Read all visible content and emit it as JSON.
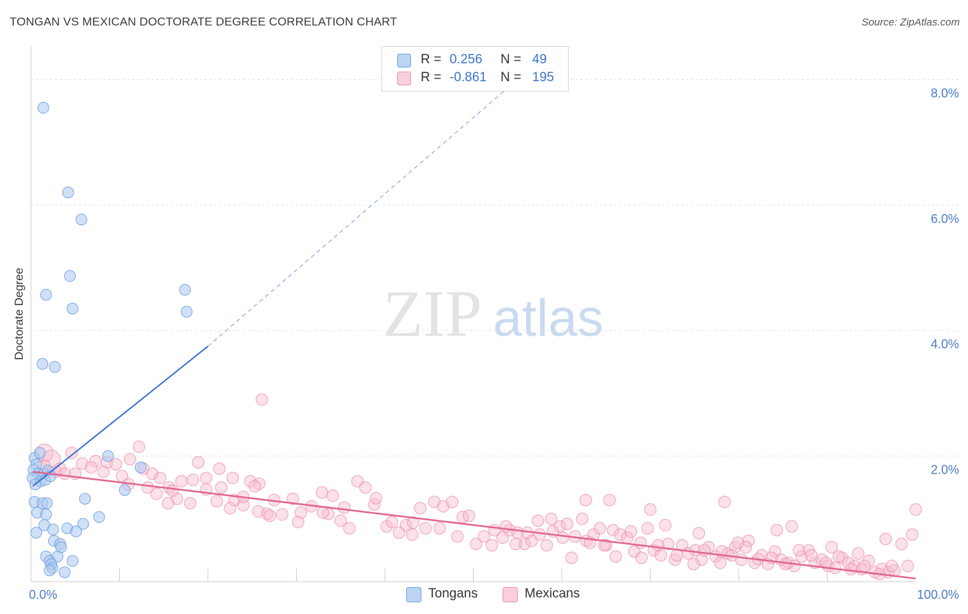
{
  "title": "TONGAN VS MEXICAN DOCTORATE DEGREE CORRELATION CHART",
  "source": "Source: ZipAtlas.com",
  "watermark": {
    "zip": "ZIP",
    "atlas": "atlas"
  },
  "colors": {
    "tongan_fill": "#a9c8f0",
    "tongan_stroke": "#6f9fe0",
    "tongan_line": "#2f6fd0",
    "mexican_fill": "#f6bccd",
    "mexican_stroke": "#ec8fac",
    "mexican_line": "#e0668f",
    "tick_blue": "#4a7cc7",
    "grid": "#dddddd"
  },
  "legend": {
    "tongan": {
      "r_label": "R =",
      "r_value": "0.256",
      "n_label": "N =",
      "n_value": "49"
    },
    "mexican": {
      "r_label": "R =",
      "r_value": "-0.861",
      "n_label": "N =",
      "n_value": "195"
    }
  },
  "bottom_legend": {
    "tongan": "Tongans",
    "mexican": "Mexicans"
  },
  "chart_data": {
    "type": "scatter",
    "title": "TONGAN VS MEXICAN DOCTORATE DEGREE CORRELATION CHART",
    "xlabel": "",
    "ylabel": "Doctorate Degree",
    "xlim": [
      0,
      100
    ],
    "ylim": [
      0,
      8.4
    ],
    "x_ticks": [
      {
        "value": 0,
        "label": "0.0%"
      },
      {
        "value": 100,
        "label": "100.0%"
      }
    ],
    "y_ticks": [
      {
        "value": 2,
        "label": "2.0%"
      },
      {
        "value": 4,
        "label": "4.0%"
      },
      {
        "value": 6,
        "label": "6.0%"
      },
      {
        "value": 8,
        "label": "8.0%"
      }
    ],
    "grid": true,
    "legend_position": "top-center",
    "series": [
      {
        "name": "Tongans",
        "r": 0.256,
        "n": 49,
        "trend": {
          "x0": 0.2,
          "y0": 1.52,
          "x1": 20,
          "y1": 3.75,
          "dash_to_x": 55,
          "dash_to_y": 8.0
        },
        "points": [
          [
            1.4,
            7.55
          ],
          [
            4.2,
            6.2
          ],
          [
            5.7,
            5.77
          ],
          [
            4.4,
            4.87
          ],
          [
            1.7,
            4.57
          ],
          [
            4.7,
            4.35
          ],
          [
            17.4,
            4.65
          ],
          [
            17.6,
            4.3
          ],
          [
            1.3,
            3.47
          ],
          [
            2.7,
            3.42
          ],
          [
            8.7,
            2.0
          ],
          [
            12.4,
            1.82
          ],
          [
            0.4,
            1.97
          ],
          [
            0.6,
            1.87
          ],
          [
            1.0,
            2.05
          ],
          [
            0.3,
            1.78
          ],
          [
            0.8,
            1.72
          ],
          [
            1.5,
            1.72
          ],
          [
            1.9,
            1.77
          ],
          [
            0.2,
            1.65
          ],
          [
            1.1,
            1.6
          ],
          [
            1.6,
            1.62
          ],
          [
            2.2,
            1.68
          ],
          [
            0.5,
            1.55
          ],
          [
            10.6,
            1.46
          ],
          [
            0.4,
            1.27
          ],
          [
            1.3,
            1.25
          ],
          [
            1.8,
            1.25
          ],
          [
            6.1,
            1.32
          ],
          [
            0.7,
            1.1
          ],
          [
            1.7,
            1.07
          ],
          [
            7.7,
            1.03
          ],
          [
            1.5,
            0.9
          ],
          [
            4.1,
            0.85
          ],
          [
            5.9,
            0.92
          ],
          [
            2.5,
            0.83
          ],
          [
            5.1,
            0.8
          ],
          [
            0.6,
            0.78
          ],
          [
            2.6,
            0.65
          ],
          [
            3.3,
            0.6
          ],
          [
            3.4,
            0.55
          ],
          [
            1.7,
            0.4
          ],
          [
            3.0,
            0.4
          ],
          [
            2.1,
            0.33
          ],
          [
            2.3,
            0.28
          ],
          [
            4.7,
            0.33
          ],
          [
            2.4,
            0.22
          ],
          [
            2.1,
            0.18
          ],
          [
            3.8,
            0.15
          ]
        ]
      },
      {
        "name": "Mexicans",
        "r": -0.861,
        "n": 195,
        "trend": {
          "x0": 0.2,
          "y0": 1.75,
          "x1": 100,
          "y1": 0.05
        },
        "points": [
          [
            1.5,
            2.05
          ],
          [
            2.3,
            1.95
          ],
          [
            3.3,
            1.8
          ],
          [
            4.6,
            2.05
          ],
          [
            5.8,
            1.88
          ],
          [
            7.3,
            1.92
          ],
          [
            8.6,
            1.9
          ],
          [
            9.6,
            1.87
          ],
          [
            11.2,
            1.95
          ],
          [
            12.2,
            2.15
          ],
          [
            1.5,
            1.85
          ],
          [
            2.8,
            1.75
          ],
          [
            3.8,
            1.72
          ],
          [
            5.0,
            1.72
          ],
          [
            6.8,
            1.82
          ],
          [
            8.2,
            1.75
          ],
          [
            10.3,
            1.68
          ],
          [
            12.7,
            1.8
          ],
          [
            13.7,
            1.72
          ],
          [
            14.6,
            1.65
          ],
          [
            18.3,
            1.62
          ],
          [
            19.8,
            1.65
          ],
          [
            21.3,
            1.8
          ],
          [
            22.8,
            1.65
          ],
          [
            24.8,
            1.6
          ],
          [
            25.8,
            1.56
          ],
          [
            18.9,
            1.9
          ],
          [
            17.0,
            1.6
          ],
          [
            11.0,
            1.55
          ],
          [
            13.2,
            1.5
          ],
          [
            14.2,
            1.4
          ],
          [
            15.6,
            1.5
          ],
          [
            16.5,
            1.32
          ],
          [
            15.5,
            1.25
          ],
          [
            19.8,
            1.47
          ],
          [
            21.5,
            1.5
          ],
          [
            23.0,
            1.3
          ],
          [
            25.3,
            1.52
          ],
          [
            22.5,
            1.17
          ],
          [
            24.0,
            1.22
          ],
          [
            25.7,
            1.12
          ],
          [
            26.7,
            1.08
          ],
          [
            27.5,
            1.3
          ],
          [
            28.4,
            1.07
          ],
          [
            29.6,
            1.32
          ],
          [
            30.5,
            1.1
          ],
          [
            31.7,
            1.2
          ],
          [
            32.9,
            1.42
          ],
          [
            34.1,
            1.37
          ],
          [
            35.4,
            1.18
          ],
          [
            36.9,
            1.6
          ],
          [
            33.6,
            1.08
          ],
          [
            35.0,
            0.97
          ],
          [
            37.8,
            1.5
          ],
          [
            38.8,
            1.23
          ],
          [
            26.1,
            2.9
          ],
          [
            40.2,
            0.88
          ],
          [
            40.8,
            0.95
          ],
          [
            41.6,
            0.78
          ],
          [
            42.4,
            0.9
          ],
          [
            43.1,
            0.75
          ],
          [
            44.6,
            0.85
          ],
          [
            45.6,
            1.27
          ],
          [
            46.6,
            1.2
          ],
          [
            47.6,
            1.27
          ],
          [
            48.8,
            1.03
          ],
          [
            49.5,
            1.05
          ],
          [
            50.3,
            0.6
          ],
          [
            51.2,
            0.72
          ],
          [
            52.1,
            0.58
          ],
          [
            53.3,
            0.7
          ],
          [
            54.1,
            0.82
          ],
          [
            55.0,
            0.78
          ],
          [
            55.8,
            0.6
          ],
          [
            56.6,
            0.65
          ],
          [
            57.5,
            0.75
          ],
          [
            58.3,
            0.58
          ],
          [
            59.0,
            0.8
          ],
          [
            59.8,
            0.88
          ],
          [
            60.6,
            0.92
          ],
          [
            61.5,
            0.72
          ],
          [
            62.3,
            1.0
          ],
          [
            62.8,
            0.65
          ],
          [
            63.6,
            0.75
          ],
          [
            64.3,
            0.85
          ],
          [
            65.0,
            0.58
          ],
          [
            65.8,
            0.82
          ],
          [
            66.6,
            0.75
          ],
          [
            67.4,
            0.7
          ],
          [
            68.2,
            0.48
          ],
          [
            68.9,
            0.62
          ],
          [
            69.7,
            0.85
          ],
          [
            70.4,
            0.5
          ],
          [
            71.2,
            0.42
          ],
          [
            72.0,
            0.6
          ],
          [
            72.8,
            0.35
          ],
          [
            73.6,
            0.58
          ],
          [
            74.3,
            0.45
          ],
          [
            75.1,
            0.5
          ],
          [
            75.8,
            0.35
          ],
          [
            76.6,
            0.55
          ],
          [
            77.4,
            0.4
          ],
          [
            78.1,
            0.48
          ],
          [
            78.8,
            0.45
          ],
          [
            79.6,
            0.55
          ],
          [
            80.3,
            0.35
          ],
          [
            81.1,
            0.65
          ],
          [
            81.8,
            0.3
          ],
          [
            82.6,
            0.42
          ],
          [
            83.3,
            0.28
          ],
          [
            84.1,
            0.48
          ],
          [
            84.8,
            0.35
          ],
          [
            85.6,
            0.3
          ],
          [
            86.3,
            0.25
          ],
          [
            87.1,
            0.4
          ],
          [
            87.9,
            0.5
          ],
          [
            88.6,
            0.3
          ],
          [
            89.4,
            0.35
          ],
          [
            90.1,
            0.25
          ],
          [
            90.9,
            0.22
          ],
          [
            91.7,
            0.38
          ],
          [
            92.4,
            0.3
          ],
          [
            93.1,
            0.25
          ],
          [
            93.9,
            0.2
          ],
          [
            94.7,
            0.33
          ],
          [
            95.4,
            0.15
          ],
          [
            96.2,
            0.2
          ],
          [
            96.9,
            0.15
          ],
          [
            97.6,
            0.18
          ],
          [
            98.4,
            0.6
          ],
          [
            99.1,
            0.25
          ],
          [
            100.0,
            1.15
          ],
          [
            43.2,
            0.94
          ],
          [
            46.2,
            0.85
          ],
          [
            52.4,
            0.82
          ],
          [
            54.8,
            0.6
          ],
          [
            57.3,
            0.97
          ],
          [
            60.1,
            0.7
          ],
          [
            63.2,
            0.62
          ],
          [
            64.8,
            0.58
          ],
          [
            66.1,
            0.4
          ],
          [
            69.0,
            0.38
          ],
          [
            70.9,
            0.58
          ],
          [
            73.0,
            0.42
          ],
          [
            74.9,
            0.28
          ],
          [
            76.1,
            0.5
          ],
          [
            77.9,
            0.3
          ],
          [
            79.2,
            0.42
          ],
          [
            80.8,
            0.55
          ],
          [
            82.2,
            0.36
          ],
          [
            83.7,
            0.38
          ],
          [
            85.3,
            0.28
          ],
          [
            86.8,
            0.5
          ],
          [
            88.2,
            0.42
          ],
          [
            89.9,
            0.3
          ],
          [
            91.3,
            0.4
          ],
          [
            92.7,
            0.2
          ],
          [
            94.2,
            0.25
          ],
          [
            95.9,
            0.12
          ],
          [
            97.3,
            0.25
          ],
          [
            44.0,
            1.17
          ],
          [
            48.2,
            0.72
          ],
          [
            53.7,
            0.88
          ],
          [
            56.1,
            0.78
          ],
          [
            58.8,
            1.0
          ],
          [
            61.1,
            0.38
          ],
          [
            65.4,
            1.3
          ],
          [
            67.8,
            0.8
          ],
          [
            71.7,
            0.9
          ],
          [
            75.5,
            0.77
          ],
          [
            79.9,
            0.62
          ],
          [
            84.3,
            0.82
          ],
          [
            90.5,
            0.55
          ],
          [
            93.5,
            0.45
          ],
          [
            96.6,
            0.68
          ],
          [
            99.6,
            0.75
          ],
          [
            86.0,
            0.88
          ],
          [
            78.4,
            1.27
          ],
          [
            70.0,
            1.15
          ],
          [
            62.7,
            1.3
          ],
          [
            36.0,
            0.85
          ],
          [
            39.0,
            1.33
          ],
          [
            33.0,
            1.1
          ],
          [
            30.2,
            0.95
          ],
          [
            27.0,
            1.05
          ],
          [
            24.0,
            1.35
          ],
          [
            21.0,
            1.28
          ],
          [
            18.0,
            1.25
          ],
          [
            16.0,
            1.45
          ]
        ]
      }
    ]
  }
}
